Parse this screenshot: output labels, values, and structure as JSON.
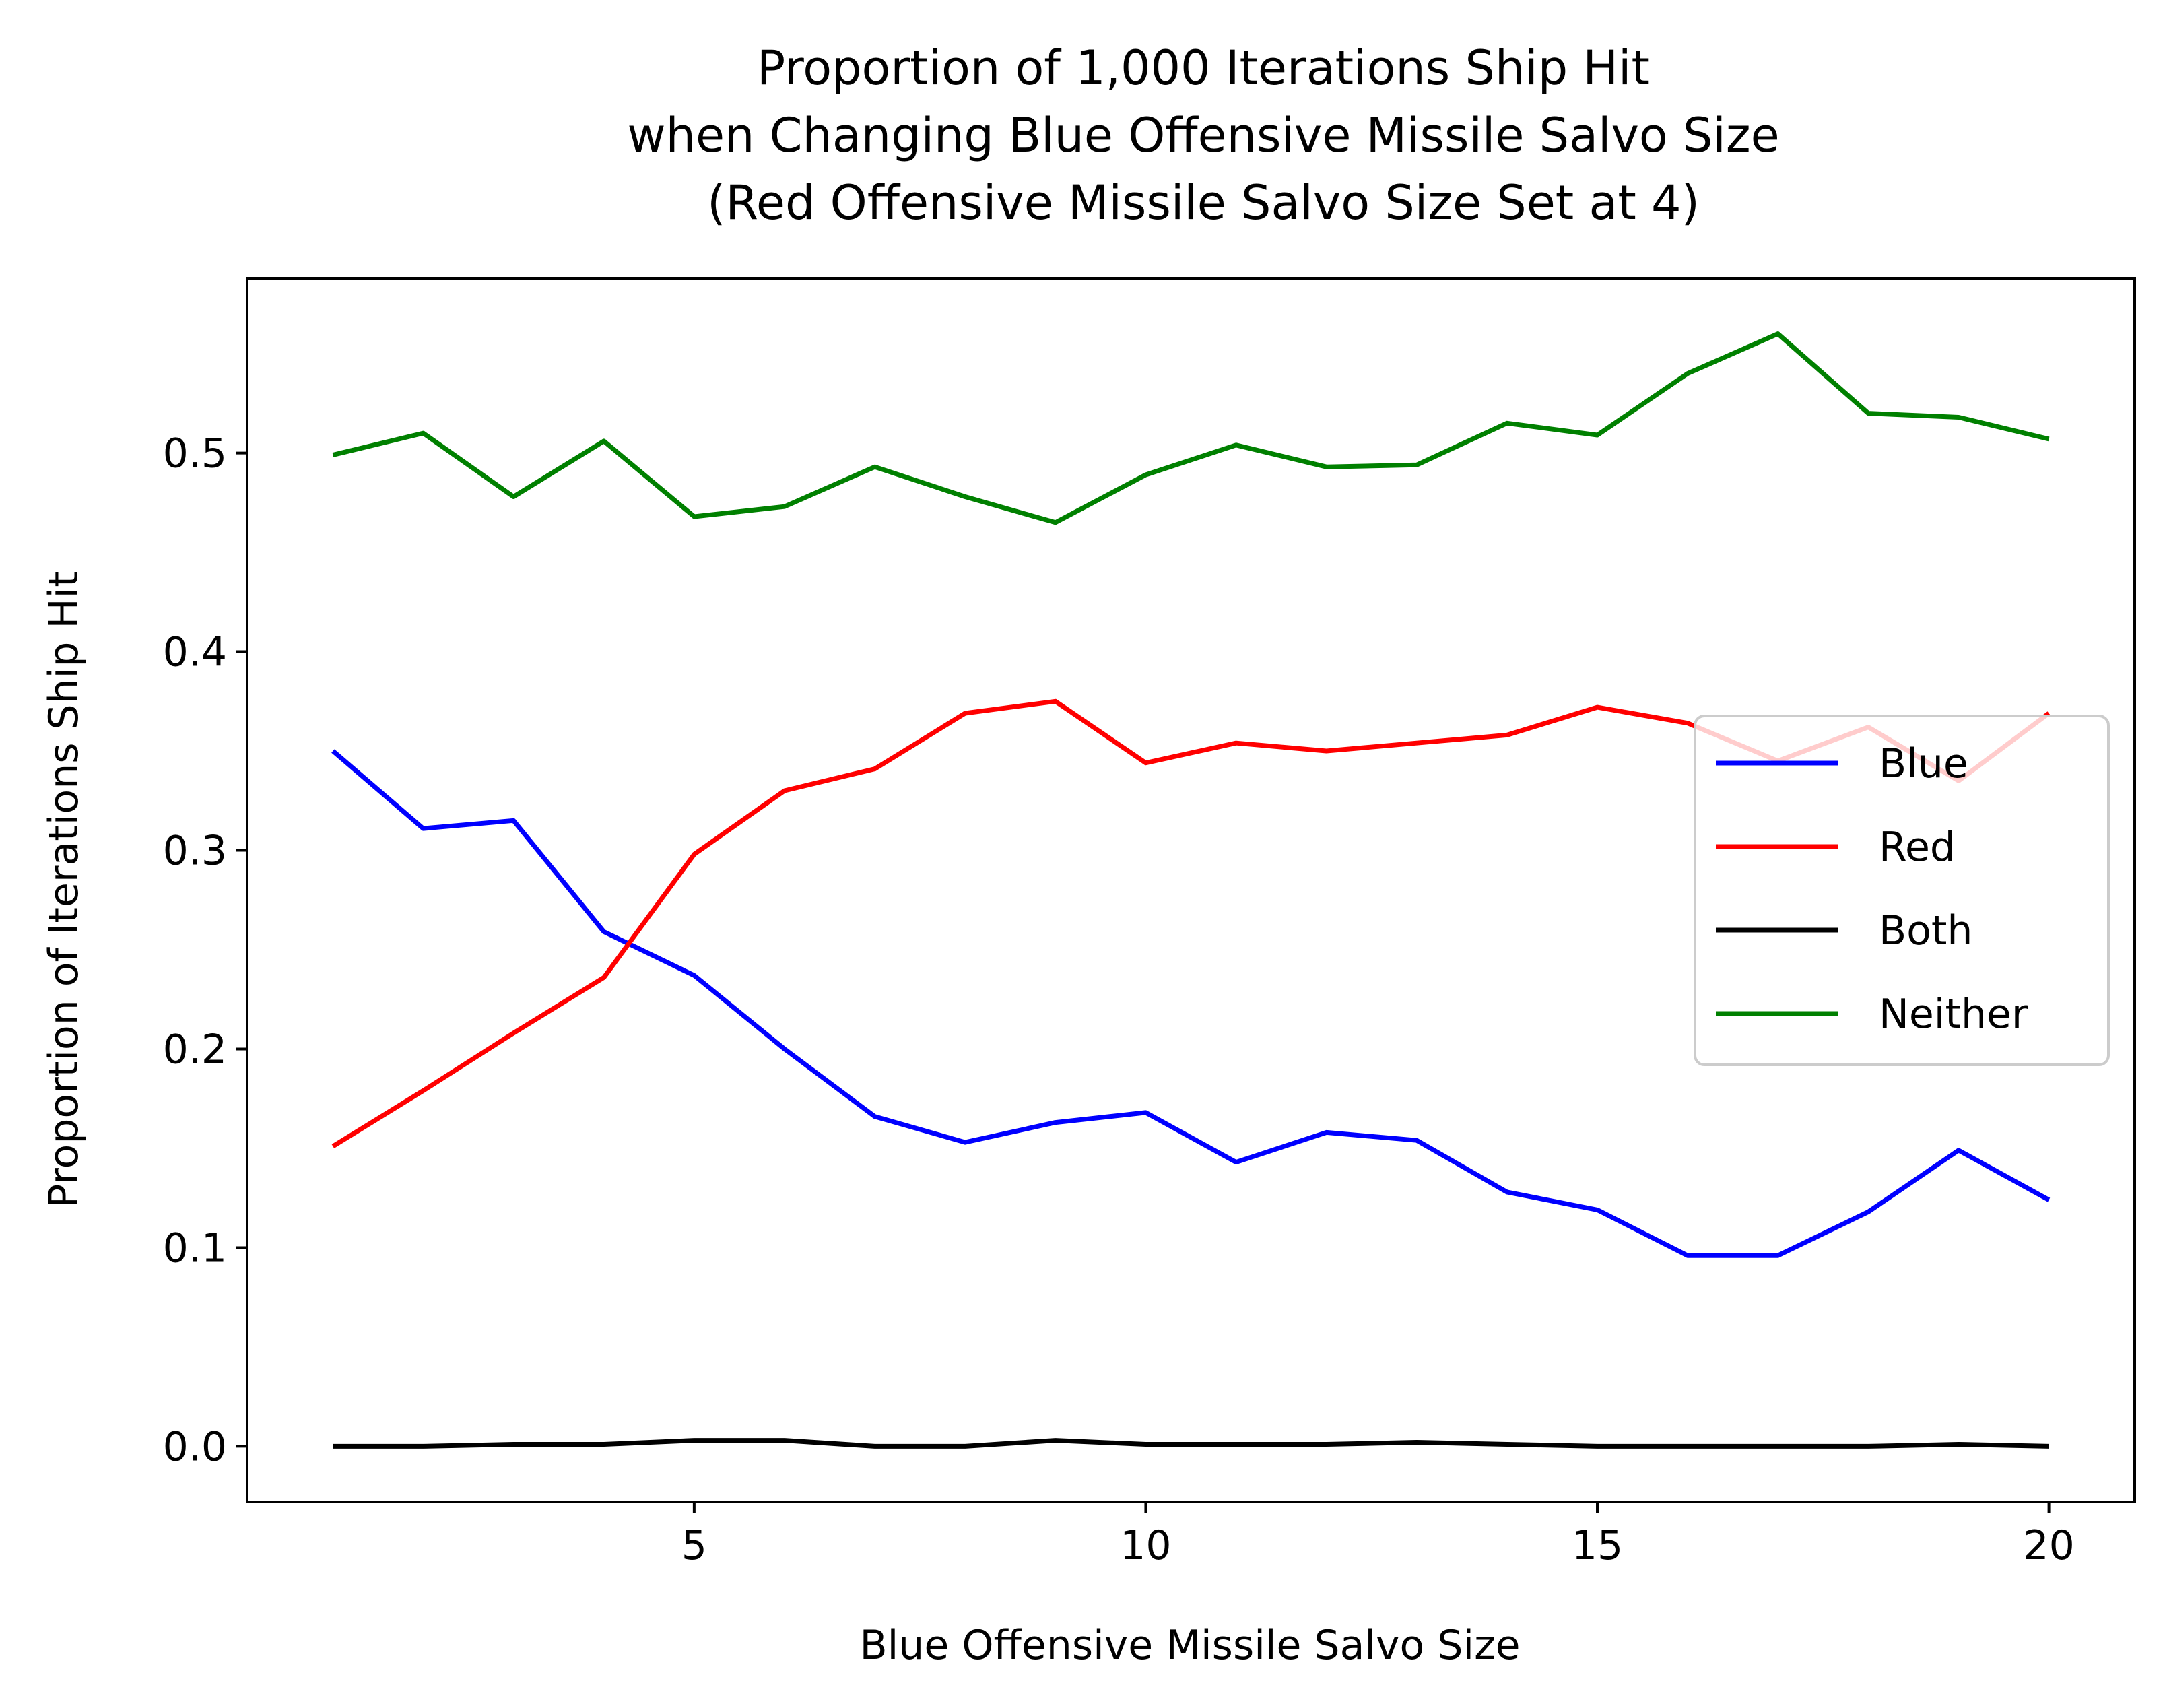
{
  "chart_data": {
    "type": "line",
    "title": [
      "Proportion of 1,000 Iterations Ship Hit",
      "when Changing Blue Offensive Missile Salvo Size",
      "(Red Offensive Missile Salvo Size Set at 4)"
    ],
    "xlabel": "Blue Offensive Missile Salvo Size",
    "ylabel": "Proportion of Iterations Ship Hit",
    "x": [
      1,
      2,
      3,
      4,
      5,
      6,
      7,
      8,
      9,
      10,
      11,
      12,
      13,
      14,
      15,
      16,
      17,
      18,
      19,
      20
    ],
    "xlim": [
      0.05,
      20.95
    ],
    "ylim": [
      -0.028,
      0.588
    ],
    "xticks": [
      5,
      10,
      15,
      20
    ],
    "xtick_labels": [
      "5",
      "10",
      "15",
      "20"
    ],
    "yticks": [
      0.0,
      0.1,
      0.2,
      0.3,
      0.4,
      0.5
    ],
    "ytick_labels": [
      "0.0",
      "0.1",
      "0.2",
      "0.3",
      "0.4",
      "0.5"
    ],
    "grid": false,
    "legend_position": "center-right",
    "series": [
      {
        "name": "Blue",
        "color": "#0000ff",
        "values": [
          0.35,
          0.311,
          0.315,
          0.259,
          0.237,
          0.2,
          0.166,
          0.153,
          0.163,
          0.168,
          0.143,
          0.158,
          0.154,
          0.128,
          0.119,
          0.096,
          0.096,
          0.118,
          0.149,
          0.124
        ]
      },
      {
        "name": "Red",
        "color": "#ff0000",
        "values": [
          0.151,
          0.179,
          0.208,
          0.236,
          0.298,
          0.33,
          0.341,
          0.369,
          0.375,
          0.344,
          0.354,
          0.35,
          0.354,
          0.358,
          0.372,
          0.364,
          0.345,
          0.362,
          0.335,
          0.369
        ]
      },
      {
        "name": "Both",
        "color": "#000000",
        "values": [
          0.0,
          0.0,
          0.001,
          0.001,
          0.003,
          0.003,
          0.0,
          0.0,
          0.003,
          0.001,
          0.001,
          0.001,
          0.002,
          0.001,
          0.0,
          0.0,
          0.0,
          0.0,
          0.001,
          0.0
        ]
      },
      {
        "name": "Neither",
        "color": "#008000",
        "values": [
          0.499,
          0.51,
          0.478,
          0.506,
          0.468,
          0.473,
          0.493,
          0.478,
          0.465,
          0.489,
          0.504,
          0.493,
          0.494,
          0.515,
          0.509,
          0.54,
          0.56,
          0.52,
          0.518,
          0.507
        ]
      }
    ]
  }
}
